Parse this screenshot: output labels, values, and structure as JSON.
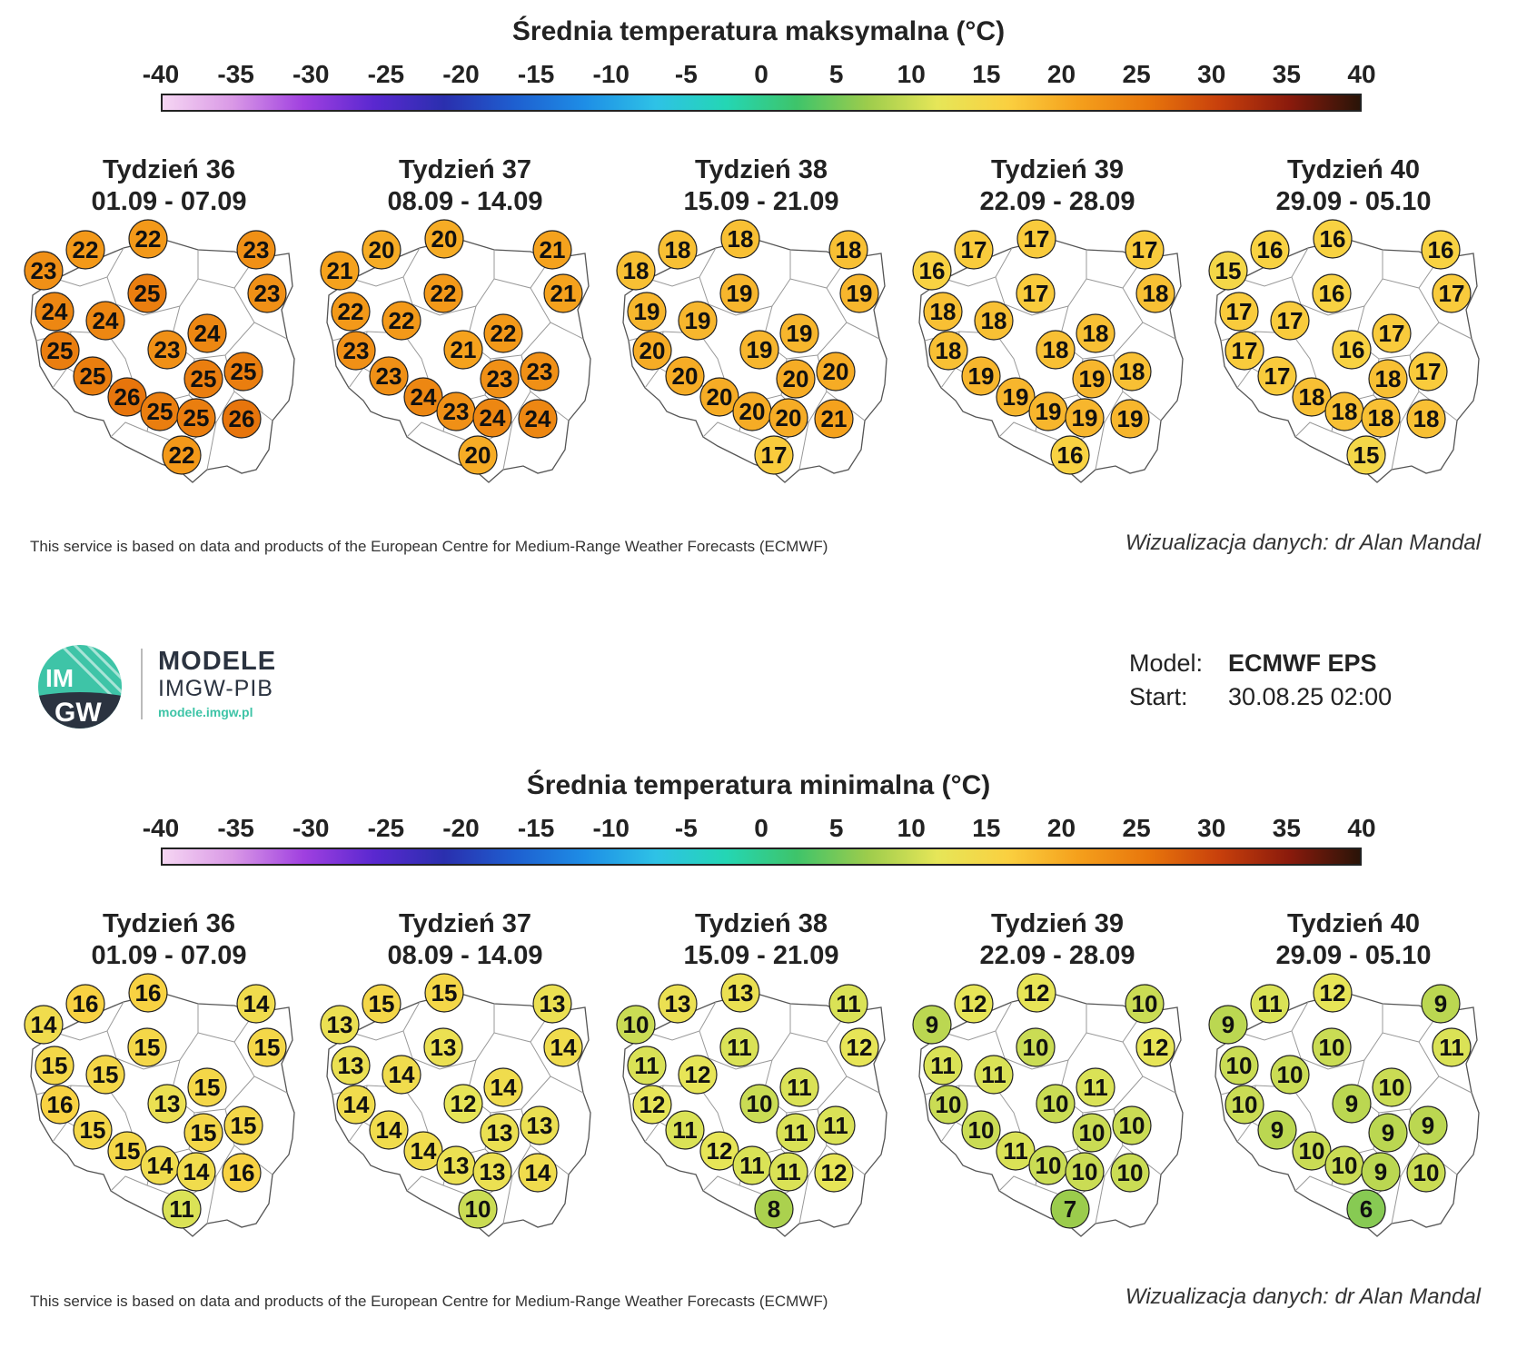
{
  "scale": {
    "ticks": [
      -40,
      -35,
      -30,
      -25,
      -20,
      -15,
      -10,
      -5,
      0,
      5,
      10,
      15,
      20,
      25,
      30,
      35,
      40
    ],
    "colors": [
      "#f6d6f3",
      "#d998e6",
      "#a040e0",
      "#5a28d0",
      "#2a2fae",
      "#1e5fd0",
      "#1e8ee6",
      "#2ec2e6",
      "#24d6b4",
      "#3ec46a",
      "#9ccc4c",
      "#e6e658",
      "#fad040",
      "#f5a01c",
      "#e8760c",
      "#c8400c",
      "#8a1a0c",
      "#2a1408"
    ]
  },
  "credits": {
    "ecmwf": "This service is based on data and products of the European Centre for Medium-Range Weather Forecasts (ECMWF)",
    "author": "Wizualizacja danych: dr Alan Mandal"
  },
  "logo": {
    "name": "MODELE",
    "org": "IMGW-PIB",
    "url": "modele.imgw.pl",
    "badge_top": "IM",
    "badge_bottom": "GW"
  },
  "model": {
    "model_label": "Model:",
    "model_value": "ECMWF EPS",
    "start_label": "Start:",
    "start_value": "30.08.25 02:00"
  },
  "panels": [
    {
      "title": "Średnia temperatura maksymalna (°C)",
      "weeks": [
        {
          "week": "Tydzień 36",
          "dates": "01.09 - 07.09",
          "values": [
            22,
            22,
            23,
            23,
            23,
            25,
            24,
            24,
            24,
            25,
            23,
            25,
            25,
            25,
            26,
            25,
            25,
            26,
            22
          ]
        },
        {
          "week": "Tydzień 37",
          "dates": "08.09 - 14.09",
          "values": [
            20,
            20,
            21,
            21,
            21,
            22,
            22,
            22,
            22,
            23,
            21,
            23,
            23,
            23,
            24,
            23,
            24,
            24,
            20
          ]
        },
        {
          "week": "Tydzień 38",
          "dates": "15.09 - 21.09",
          "values": [
            18,
            18,
            18,
            18,
            19,
            19,
            19,
            19,
            19,
            20,
            19,
            20,
            20,
            20,
            20,
            20,
            20,
            21,
            17
          ]
        },
        {
          "week": "Tydzień 39",
          "dates": "22.09 - 28.09",
          "values": [
            17,
            17,
            17,
            16,
            18,
            17,
            18,
            18,
            18,
            18,
            18,
            19,
            19,
            18,
            19,
            19,
            19,
            19,
            16
          ]
        },
        {
          "week": "Tydzień 40",
          "dates": "29.09 - 05.10",
          "values": [
            16,
            16,
            16,
            15,
            17,
            16,
            17,
            17,
            17,
            17,
            16,
            17,
            18,
            17,
            18,
            18,
            18,
            18,
            15
          ]
        }
      ]
    },
    {
      "title": "Średnia temperatura minimalna (°C)",
      "weeks": [
        {
          "week": "Tydzień 36",
          "dates": "01.09 - 07.09",
          "values": [
            16,
            16,
            14,
            14,
            15,
            15,
            15,
            15,
            15,
            16,
            13,
            15,
            15,
            15,
            15,
            14,
            14,
            16,
            11
          ]
        },
        {
          "week": "Tydzień 37",
          "dates": "08.09 - 14.09",
          "values": [
            15,
            15,
            13,
            13,
            14,
            13,
            13,
            14,
            14,
            14,
            12,
            14,
            13,
            13,
            14,
            13,
            13,
            14,
            10
          ]
        },
        {
          "week": "Tydzień 38",
          "dates": "15.09 - 21.09",
          "values": [
            13,
            13,
            11,
            10,
            12,
            11,
            11,
            12,
            11,
            12,
            10,
            11,
            11,
            11,
            12,
            11,
            11,
            12,
            8
          ]
        },
        {
          "week": "Tydzień 39",
          "dates": "22.09 - 28.09",
          "values": [
            12,
            12,
            10,
            9,
            12,
            10,
            11,
            11,
            11,
            10,
            10,
            10,
            10,
            10,
            11,
            10,
            10,
            10,
            7
          ]
        },
        {
          "week": "Tydzień 40",
          "dates": "29.09 - 05.10",
          "values": [
            11,
            12,
            9,
            9,
            11,
            10,
            10,
            10,
            10,
            10,
            9,
            9,
            9,
            9,
            10,
            10,
            9,
            10,
            6
          ]
        }
      ]
    }
  ]
}
